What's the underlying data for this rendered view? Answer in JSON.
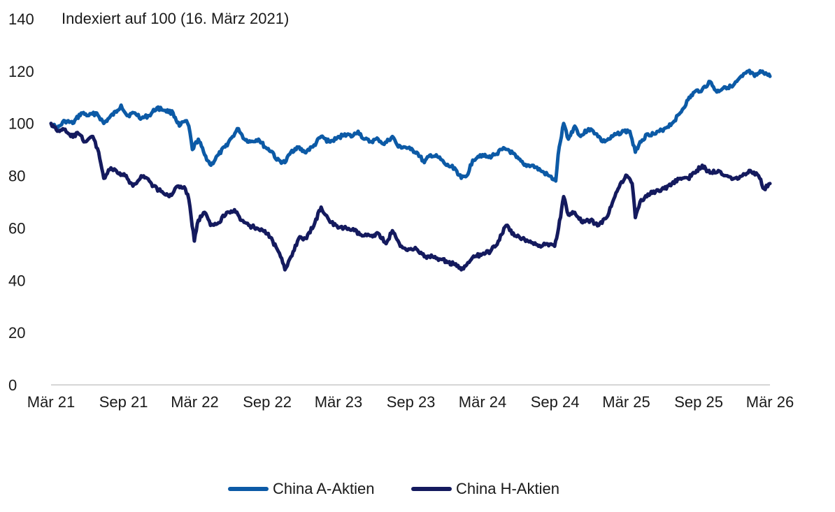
{
  "colors": {
    "series_a": "#0c5aa6",
    "series_h": "#141a5e",
    "axis": "#c8c8c8"
  },
  "chart_data": {
    "type": "line",
    "note": "Indexiert auf 100 (16. März 2021)",
    "ylim": [
      0,
      140
    ],
    "yticks": [
      0,
      20,
      40,
      60,
      80,
      100,
      120,
      140
    ],
    "xlim": [
      "2021-03-16",
      "2026-03-16"
    ],
    "xticks": [
      {
        "label": "Mär 21",
        "date": "2021-03-16"
      },
      {
        "label": "Sep 21",
        "date": "2021-09-16"
      },
      {
        "label": "Mär 22",
        "date": "2022-03-16"
      },
      {
        "label": "Sep 22",
        "date": "2022-09-16"
      },
      {
        "label": "Mär 23",
        "date": "2023-03-16"
      },
      {
        "label": "Sep 23",
        "date": "2023-09-16"
      },
      {
        "label": "Mär 24",
        "date": "2024-03-16"
      },
      {
        "label": "Sep 24",
        "date": "2024-09-16"
      },
      {
        "label": "Mär 25",
        "date": "2025-03-16"
      },
      {
        "label": "Sep 25",
        "date": "2025-09-16"
      },
      {
        "label": "Mär 26",
        "date": "2026-03-16"
      }
    ],
    "grid": false,
    "legend_position": "bottom-center",
    "series": [
      {
        "name": "China A-Aktien",
        "points": [
          [
            "2021-03-16",
            100
          ],
          [
            "2021-04-01",
            98
          ],
          [
            "2021-04-20",
            101
          ],
          [
            "2021-05-10",
            100
          ],
          [
            "2021-06-01",
            104
          ],
          [
            "2021-06-20",
            103
          ],
          [
            "2021-07-10",
            104
          ],
          [
            "2021-07-28",
            100
          ],
          [
            "2021-08-10",
            102
          ],
          [
            "2021-09-01",
            105
          ],
          [
            "2021-09-10",
            107
          ],
          [
            "2021-09-25",
            103
          ],
          [
            "2021-10-15",
            104
          ],
          [
            "2021-11-01",
            102
          ],
          [
            "2021-11-20",
            103
          ],
          [
            "2021-12-10",
            106
          ],
          [
            "2021-12-31",
            105
          ],
          [
            "2022-01-20",
            104
          ],
          [
            "2022-02-05",
            99
          ],
          [
            "2022-02-20",
            101
          ],
          [
            "2022-03-01",
            99
          ],
          [
            "2022-03-10",
            90
          ],
          [
            "2022-03-25",
            94
          ],
          [
            "2022-04-10",
            88
          ],
          [
            "2022-04-26",
            84
          ],
          [
            "2022-05-15",
            88
          ],
          [
            "2022-06-01",
            91
          ],
          [
            "2022-06-20",
            95
          ],
          [
            "2022-07-05",
            98
          ],
          [
            "2022-07-20",
            94
          ],
          [
            "2022-08-05",
            93
          ],
          [
            "2022-08-25",
            94
          ],
          [
            "2022-09-10",
            91
          ],
          [
            "2022-09-30",
            89
          ],
          [
            "2022-10-10",
            86
          ],
          [
            "2022-10-31",
            85
          ],
          [
            "2022-11-15",
            89
          ],
          [
            "2022-12-01",
            91
          ],
          [
            "2022-12-20",
            89
          ],
          [
            "2023-01-10",
            91
          ],
          [
            "2023-01-31",
            95
          ],
          [
            "2023-02-20",
            93
          ],
          [
            "2023-03-10",
            94
          ],
          [
            "2023-04-01",
            96
          ],
          [
            "2023-04-20",
            95
          ],
          [
            "2023-05-05",
            97
          ],
          [
            "2023-05-20",
            94
          ],
          [
            "2023-06-05",
            93
          ],
          [
            "2023-06-25",
            94
          ],
          [
            "2023-07-10",
            92
          ],
          [
            "2023-07-31",
            95
          ],
          [
            "2023-08-15",
            91
          ],
          [
            "2023-08-31",
            91
          ],
          [
            "2023-09-15",
            90
          ],
          [
            "2023-10-01",
            89
          ],
          [
            "2023-10-20",
            85
          ],
          [
            "2023-11-05",
            88
          ],
          [
            "2023-11-25",
            87
          ],
          [
            "2023-12-15",
            84
          ],
          [
            "2024-01-05",
            83
          ],
          [
            "2024-01-22",
            79
          ],
          [
            "2024-02-05",
            80
          ],
          [
            "2024-02-20",
            86
          ],
          [
            "2024-03-10",
            88
          ],
          [
            "2024-03-31",
            87
          ],
          [
            "2024-04-15",
            88
          ],
          [
            "2024-05-05",
            90
          ],
          [
            "2024-05-20",
            90
          ],
          [
            "2024-06-10",
            87
          ],
          [
            "2024-06-30",
            84
          ],
          [
            "2024-07-20",
            84
          ],
          [
            "2024-08-10",
            82
          ],
          [
            "2024-08-31",
            80
          ],
          [
            "2024-09-18",
            78
          ],
          [
            "2024-09-24",
            88
          ],
          [
            "2024-10-08",
            100
          ],
          [
            "2024-10-20",
            94
          ],
          [
            "2024-11-05",
            99
          ],
          [
            "2024-11-20",
            95
          ],
          [
            "2024-12-10",
            98
          ],
          [
            "2024-12-31",
            96
          ],
          [
            "2025-01-15",
            93
          ],
          [
            "2025-02-01",
            94
          ],
          [
            "2025-02-20",
            96
          ],
          [
            "2025-03-10",
            97
          ],
          [
            "2025-03-25",
            97
          ],
          [
            "2025-04-08",
            89
          ],
          [
            "2025-04-20",
            93
          ],
          [
            "2025-05-10",
            96
          ],
          [
            "2025-05-30",
            96
          ],
          [
            "2025-06-20",
            98
          ],
          [
            "2025-07-10",
            100
          ],
          [
            "2025-07-31",
            104
          ],
          [
            "2025-08-20",
            109
          ],
          [
            "2025-09-05",
            112
          ],
          [
            "2025-09-25",
            113
          ],
          [
            "2025-10-15",
            116
          ],
          [
            "2025-11-01",
            112
          ],
          [
            "2025-11-20",
            114
          ],
          [
            "2025-12-10",
            114
          ],
          [
            "2026-01-05",
            118
          ],
          [
            "2026-01-20",
            120
          ],
          [
            "2026-02-05",
            118
          ],
          [
            "2026-02-25",
            120
          ],
          [
            "2026-03-16",
            118
          ]
        ]
      },
      {
        "name": "China H-Aktien",
        "points": [
          [
            "2021-03-16",
            100
          ],
          [
            "2021-04-01",
            97
          ],
          [
            "2021-04-15",
            98
          ],
          [
            "2021-05-05",
            95
          ],
          [
            "2021-05-25",
            96
          ],
          [
            "2021-06-10",
            93
          ],
          [
            "2021-06-30",
            95
          ],
          [
            "2021-07-15",
            89
          ],
          [
            "2021-07-28",
            79
          ],
          [
            "2021-08-15",
            83
          ],
          [
            "2021-09-01",
            81
          ],
          [
            "2021-09-20",
            80
          ],
          [
            "2021-10-10",
            76
          ],
          [
            "2021-10-31",
            80
          ],
          [
            "2021-11-15",
            79
          ],
          [
            "2021-12-01",
            76
          ],
          [
            "2021-12-20",
            74
          ],
          [
            "2022-01-10",
            72
          ],
          [
            "2022-01-31",
            76
          ],
          [
            "2022-02-20",
            75
          ],
          [
            "2022-03-01",
            71
          ],
          [
            "2022-03-15",
            55
          ],
          [
            "2022-03-25",
            63
          ],
          [
            "2022-04-10",
            66
          ],
          [
            "2022-04-25",
            61
          ],
          [
            "2022-05-15",
            62
          ],
          [
            "2022-06-05",
            66
          ],
          [
            "2022-06-25",
            67
          ],
          [
            "2022-07-10",
            63
          ],
          [
            "2022-07-31",
            61
          ],
          [
            "2022-08-20",
            60
          ],
          [
            "2022-09-10",
            59
          ],
          [
            "2022-09-30",
            55
          ],
          [
            "2022-10-20",
            49
          ],
          [
            "2022-10-31",
            44
          ],
          [
            "2022-11-15",
            49
          ],
          [
            "2022-12-05",
            56
          ],
          [
            "2022-12-25",
            56
          ],
          [
            "2023-01-15",
            62
          ],
          [
            "2023-01-31",
            68
          ],
          [
            "2023-02-20",
            63
          ],
          [
            "2023-03-15",
            60
          ],
          [
            "2023-04-05",
            60
          ],
          [
            "2023-04-25",
            59
          ],
          [
            "2023-05-15",
            57
          ],
          [
            "2023-06-05",
            57
          ],
          [
            "2023-06-25",
            58
          ],
          [
            "2023-07-15",
            54
          ],
          [
            "2023-07-31",
            59
          ],
          [
            "2023-08-20",
            53
          ],
          [
            "2023-09-10",
            52
          ],
          [
            "2023-09-30",
            52
          ],
          [
            "2023-10-20",
            49
          ],
          [
            "2023-11-10",
            49
          ],
          [
            "2023-12-01",
            48
          ],
          [
            "2023-12-20",
            47
          ],
          [
            "2024-01-05",
            46
          ],
          [
            "2024-01-22",
            44
          ],
          [
            "2024-02-05",
            46
          ],
          [
            "2024-02-25",
            49
          ],
          [
            "2024-03-15",
            50
          ],
          [
            "2024-04-05",
            51
          ],
          [
            "2024-04-25",
            55
          ],
          [
            "2024-05-15",
            61
          ],
          [
            "2024-06-05",
            57
          ],
          [
            "2024-06-25",
            56
          ],
          [
            "2024-07-15",
            55
          ],
          [
            "2024-08-05",
            53
          ],
          [
            "2024-08-25",
            54
          ],
          [
            "2024-09-15",
            53
          ],
          [
            "2024-09-25",
            60
          ],
          [
            "2024-10-08",
            72
          ],
          [
            "2024-10-20",
            65
          ],
          [
            "2024-11-05",
            66
          ],
          [
            "2024-11-25",
            62
          ],
          [
            "2024-12-15",
            63
          ],
          [
            "2025-01-05",
            61
          ],
          [
            "2025-01-25",
            64
          ],
          [
            "2025-02-15",
            72
          ],
          [
            "2025-03-01",
            77
          ],
          [
            "2025-03-18",
            80
          ],
          [
            "2025-03-31",
            77
          ],
          [
            "2025-04-08",
            64
          ],
          [
            "2025-04-20",
            70
          ],
          [
            "2025-05-10",
            73
          ],
          [
            "2025-05-30",
            74
          ],
          [
            "2025-06-20",
            75
          ],
          [
            "2025-07-10",
            77
          ],
          [
            "2025-07-31",
            79
          ],
          [
            "2025-08-20",
            79
          ],
          [
            "2025-09-05",
            81
          ],
          [
            "2025-09-25",
            84
          ],
          [
            "2025-10-15",
            81
          ],
          [
            "2025-11-05",
            82
          ],
          [
            "2025-11-25",
            80
          ],
          [
            "2025-12-15",
            79
          ],
          [
            "2026-01-05",
            80
          ],
          [
            "2026-01-25",
            82
          ],
          [
            "2026-02-15",
            80
          ],
          [
            "2026-03-01",
            75
          ],
          [
            "2026-03-16",
            77
          ]
        ]
      }
    ]
  }
}
